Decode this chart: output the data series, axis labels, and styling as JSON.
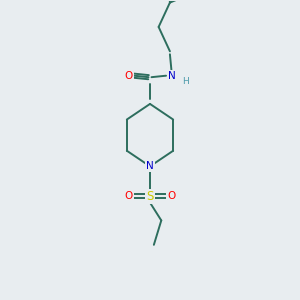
{
  "bg_color": "#e8edf0",
  "bond_color": "#2d6e5e",
  "atom_colors": {
    "O": "#ff0000",
    "N": "#0000cc",
    "S": "#cccc00",
    "H": "#4a9aaa",
    "C": "#2d6e5e"
  },
  "figsize": [
    3.0,
    3.0
  ],
  "dpi": 100,
  "lw": 1.4
}
